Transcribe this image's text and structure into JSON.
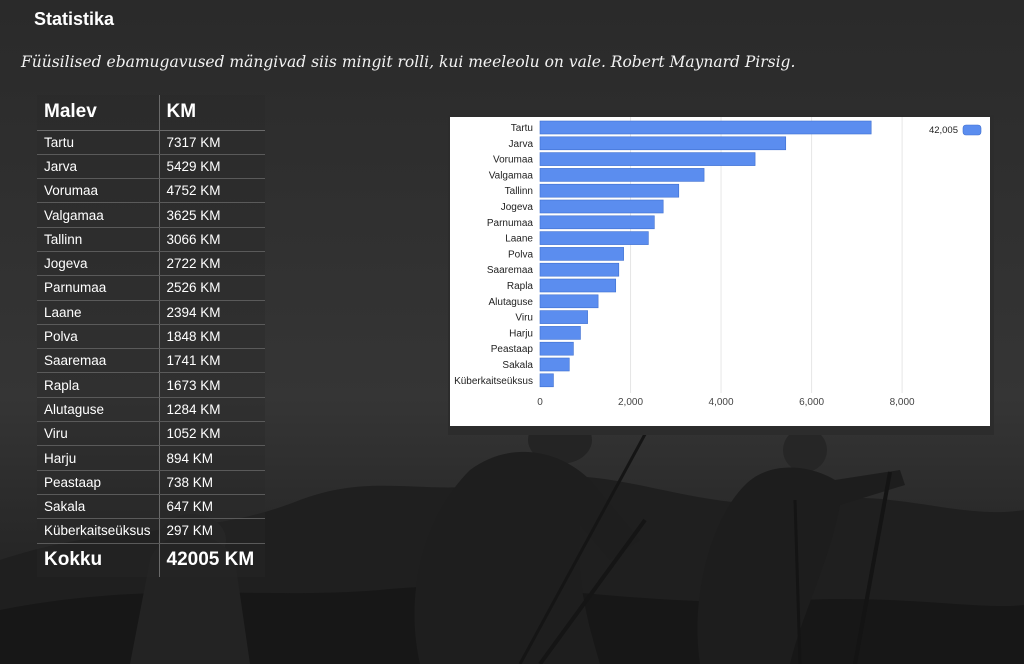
{
  "page": {
    "title": "Statistika",
    "quote": "Füüsilised ebamugavused mängivad siis mingit rolli, kui meeleolu on vale. Robert Maynard Pirsig."
  },
  "table": {
    "header_unit": "Malev",
    "header_km": "KM",
    "rows": [
      {
        "name": "Tartu",
        "km": "7317 KM"
      },
      {
        "name": "Jarva",
        "km": "5429 KM"
      },
      {
        "name": "Vorumaa",
        "km": "4752 KM"
      },
      {
        "name": "Valgamaa",
        "km": "3625 KM"
      },
      {
        "name": "Tallinn",
        "km": "3066 KM"
      },
      {
        "name": "Jogeva",
        "km": "2722 KM"
      },
      {
        "name": "Parnumaa",
        "km": "2526 KM"
      },
      {
        "name": "Laane",
        "km": "2394 KM"
      },
      {
        "name": "Polva",
        "km": "1848 KM"
      },
      {
        "name": "Saaremaa",
        "km": "1741 KM"
      },
      {
        "name": "Rapla",
        "km": "1673 KM"
      },
      {
        "name": "Alutaguse",
        "km": "1284 KM"
      },
      {
        "name": "Viru",
        "km": "1052 KM"
      },
      {
        "name": "Harju",
        "km": "894 KM"
      },
      {
        "name": "Peastaap",
        "km": "738 KM"
      },
      {
        "name": "Sakala",
        "km": "647 KM"
      },
      {
        "name": "Küberkaitseüksus",
        "km": "297 KM"
      }
    ],
    "total_label": "Kokku",
    "total_value": "42005 KM"
  },
  "chart_data": {
    "type": "bar",
    "orientation": "horizontal",
    "categories": [
      "Tartu",
      "Jarva",
      "Vorumaa",
      "Valgamaa",
      "Tallinn",
      "Jogeva",
      "Parnumaa",
      "Laane",
      "Polva",
      "Saaremaa",
      "Rapla",
      "Alutaguse",
      "Viru",
      "Harju",
      "Peastaap",
      "Sakala",
      "Küberkaitseüksus"
    ],
    "series": [
      {
        "name": "42,005",
        "values": [
          7317,
          5429,
          4752,
          3625,
          3066,
          2722,
          2526,
          2394,
          1848,
          1741,
          1673,
          1284,
          1052,
          894,
          738,
          647,
          297
        ]
      }
    ],
    "xlim": [
      0,
      9500
    ],
    "x_ticks": [
      0,
      2000,
      4000,
      6000,
      8000
    ],
    "x_tick_labels": [
      "0",
      "2,000",
      "4,000",
      "6,000",
      "8,000"
    ],
    "grid": "vertical",
    "legend": "top-right",
    "bar_color": "#5b8def",
    "bar_stroke": "#3f6fcf"
  }
}
